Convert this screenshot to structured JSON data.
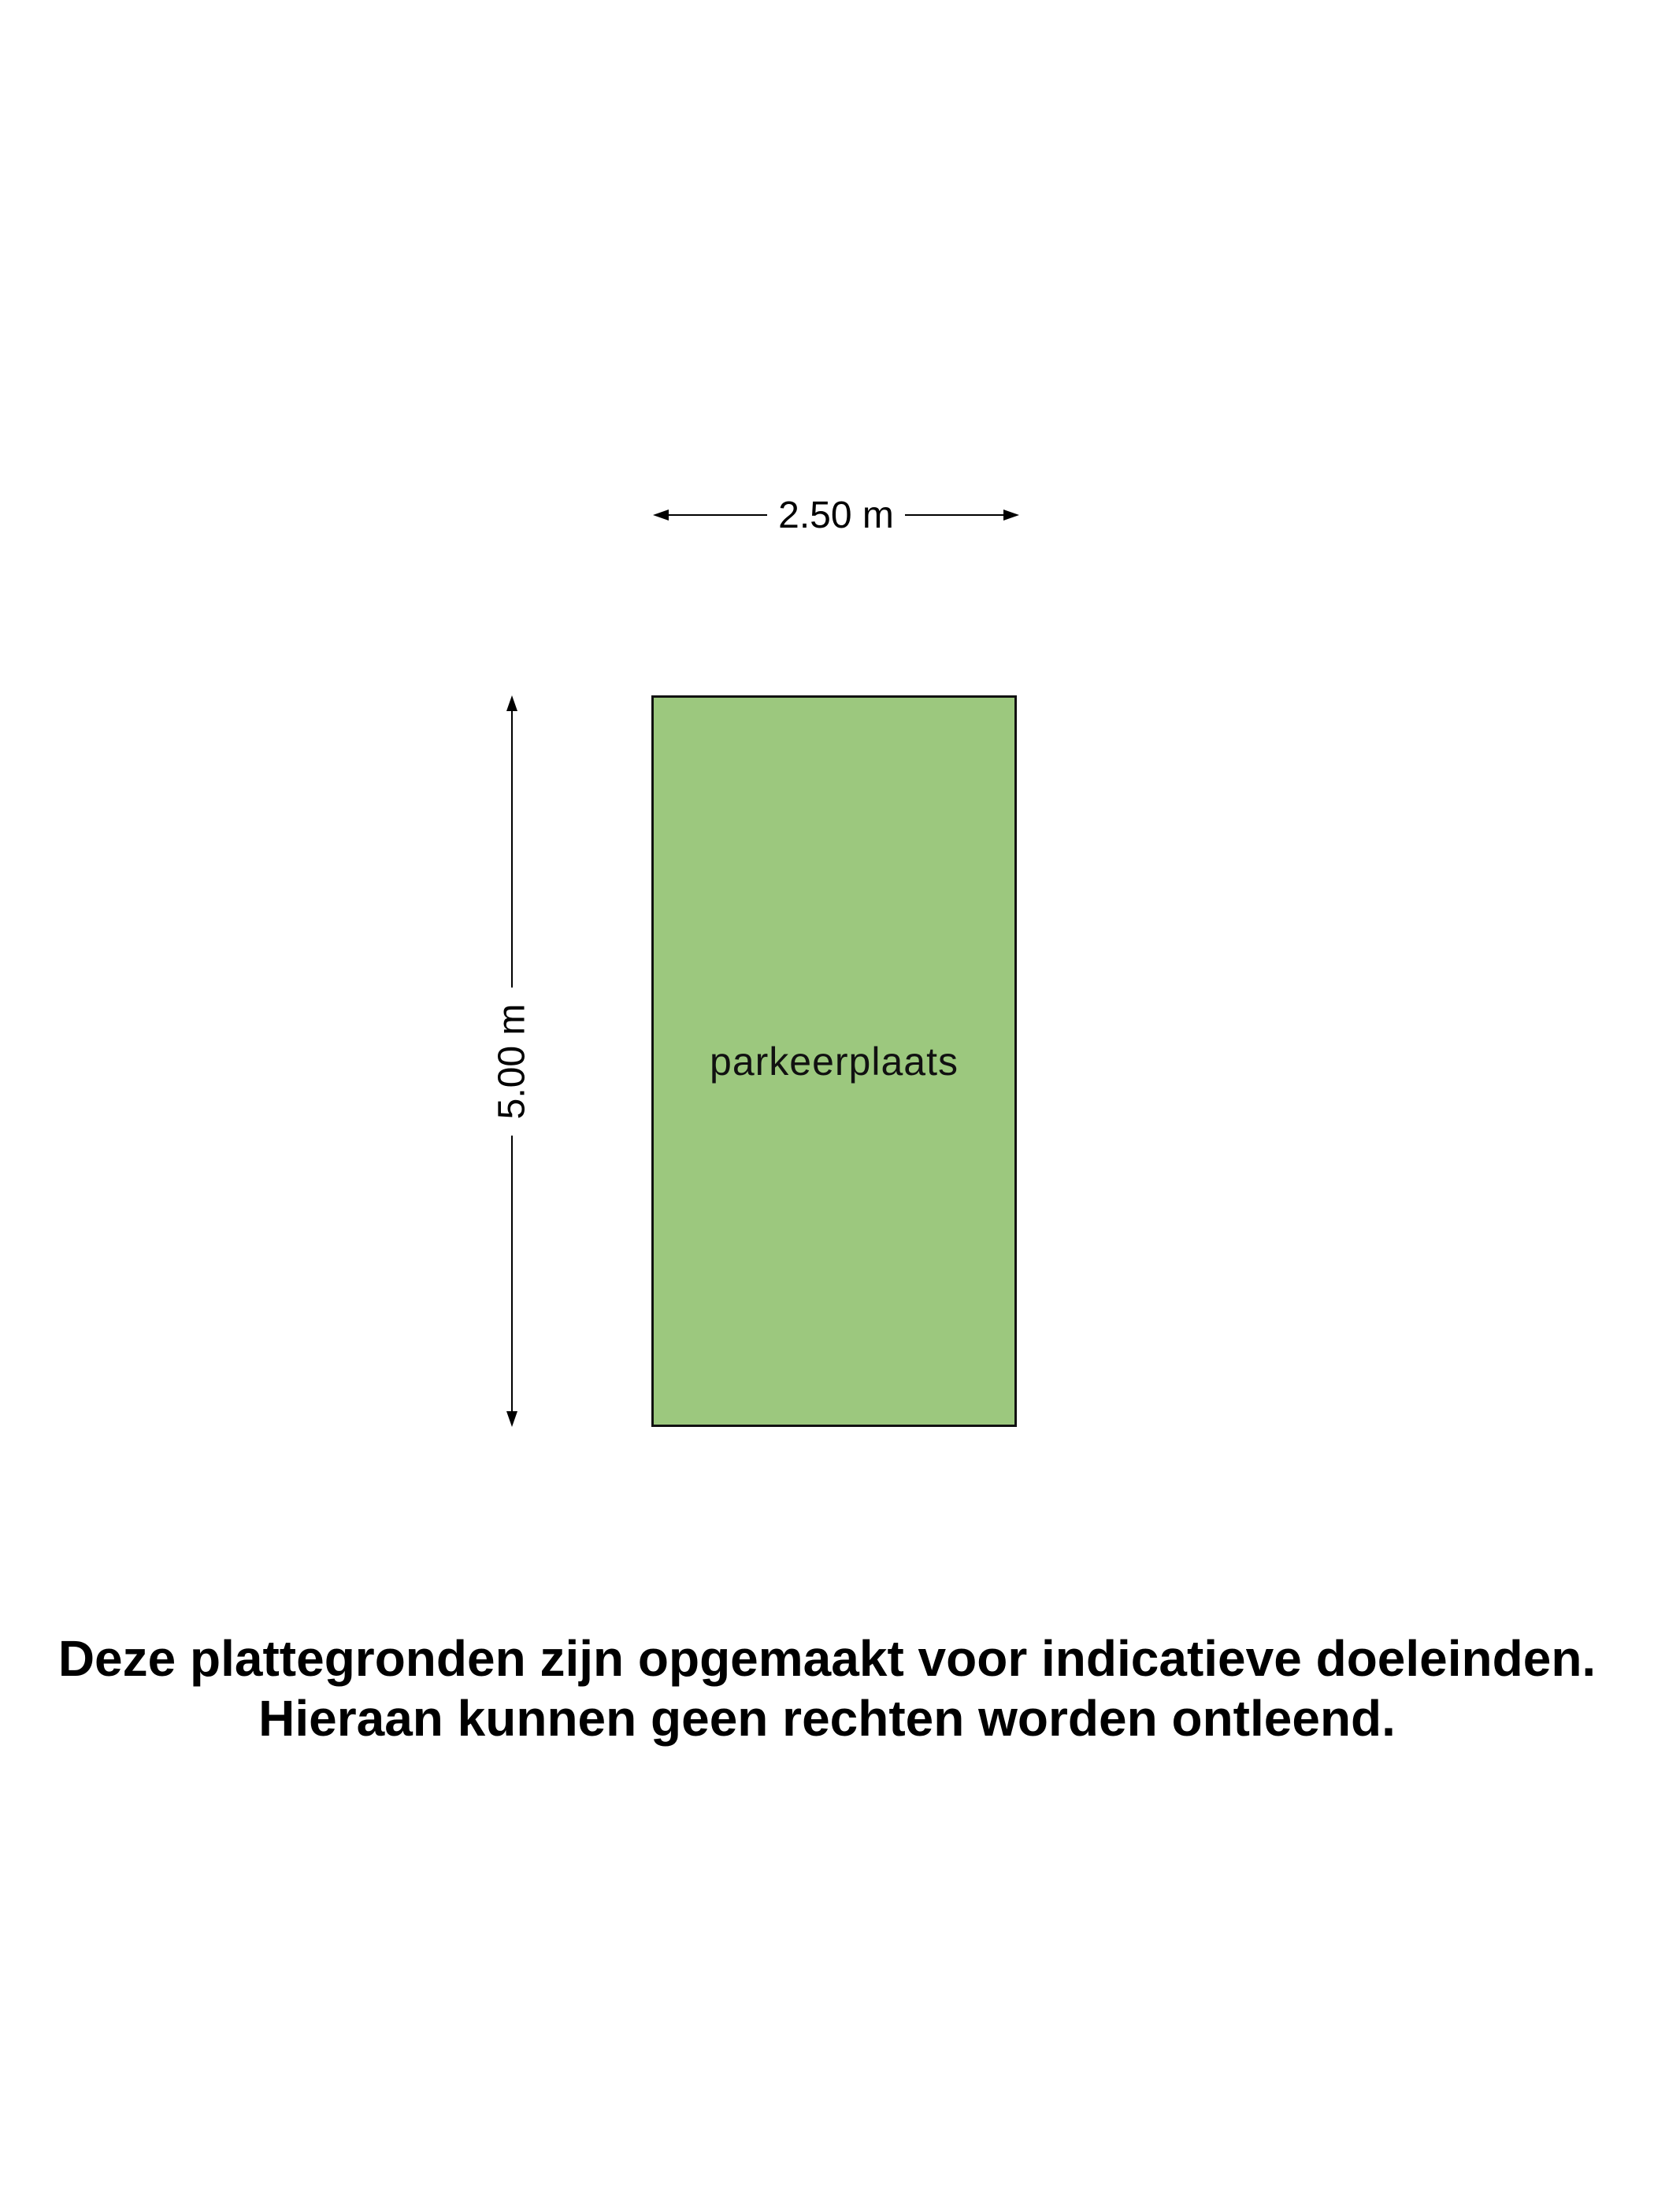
{
  "diagram": {
    "room": {
      "label": "parkeerplaats",
      "fill_color": "#9cc87e",
      "border_color": "#111111",
      "width_label": "2.50 m",
      "height_label": "5.00 m"
    }
  },
  "disclaimer": {
    "line1": "Deze plattegronden zijn opgemaakt voor indicatieve doeleinden.",
    "line2": "Hieraan kunnen geen rechten worden ontleend."
  }
}
